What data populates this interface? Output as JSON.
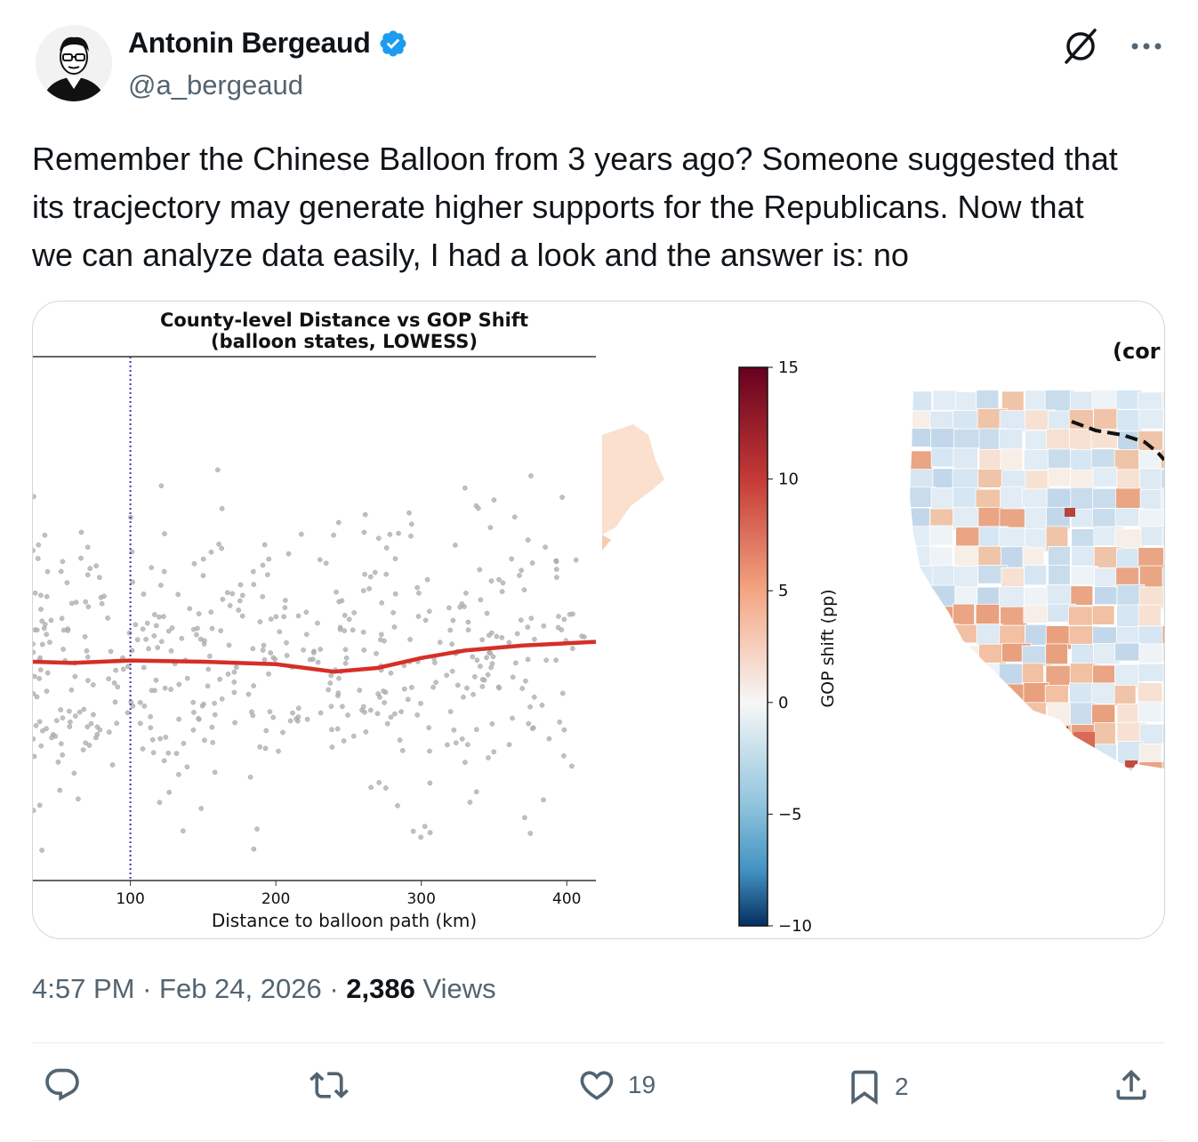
{
  "author": {
    "name": "Antonin Bergeaud",
    "handle": "@a_bergeaud",
    "verified": true
  },
  "tweet": {
    "lines": [
      "Remember the Chinese Balloon from 3 years ago? Someone suggested that",
      "its tracjectory may generate higher supports for the Republicans. Now that",
      "we can analyze data easily, I had a look and the answer is: no"
    ]
  },
  "chart_data": {
    "type": "scatter",
    "title": "County-level Distance vs GOP Shift",
    "subtitle": "(balloon states, LOWESS)",
    "xlabel": "Distance to balloon path (km)",
    "ylabel": "",
    "xlim": [
      33,
      420
    ],
    "x_ticks": [
      100,
      200,
      300,
      400
    ],
    "grid": false,
    "reference_line_x": 100,
    "lowess": {
      "x": [
        33,
        60,
        100,
        150,
        200,
        240,
        270,
        300,
        330,
        370,
        420
      ],
      "y": [
        0,
        -0.1,
        0.1,
        0,
        -0.2,
        -0.8,
        -0.5,
        0.3,
        0.9,
        1.3,
        1.6
      ]
    }
  },
  "colorbar": {
    "label": "GOP shift (pp)",
    "ticks": [
      "15",
      "10",
      "5",
      "0",
      "−5",
      "−10"
    ],
    "values": [
      15,
      10,
      5,
      0,
      -5,
      -10
    ],
    "min": -10,
    "max": 15,
    "cmap": "RdBu_r"
  },
  "map": {
    "title_fragment": "(cor"
  },
  "meta": {
    "time": "4:57 PM",
    "sep": " · ",
    "date": "Feb 24, 2026",
    "views_count": "2,386",
    "views_label": " Views"
  },
  "actions": {
    "replies": "",
    "reposts": "",
    "likes": "19",
    "bookmarks": "2"
  },
  "colors": {
    "text": "#0f1419",
    "muted": "#536471",
    "verified": "#1d9bf0",
    "lowess": "#d62f27",
    "ref_line": "#3a3aa8"
  },
  "icons": [
    "verified-badge-icon",
    "grok-icon",
    "more-icon",
    "reply-icon",
    "repost-icon",
    "like-icon",
    "bookmark-icon",
    "share-icon"
  ]
}
